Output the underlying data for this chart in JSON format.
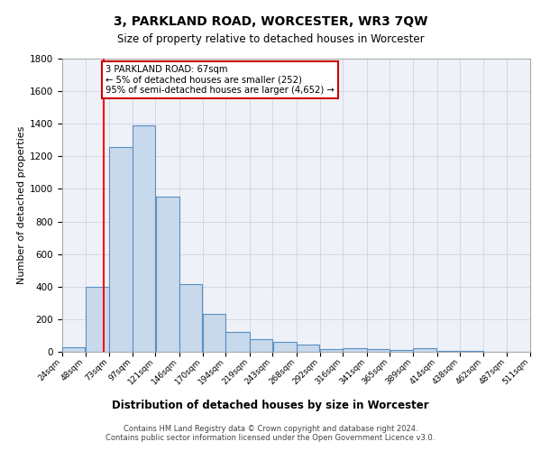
{
  "title": "3, PARKLAND ROAD, WORCESTER, WR3 7QW",
  "subtitle": "Size of property relative to detached houses in Worcester",
  "xlabel": "Distribution of detached houses by size in Worcester",
  "ylabel": "Number of detached properties",
  "bar_color": "#c9d9ec",
  "bar_edge_color": "#5a8fc0",
  "bins": [
    24,
    48,
    73,
    97,
    121,
    146,
    170,
    194,
    219,
    243,
    268,
    292,
    316,
    341,
    365,
    389,
    414,
    438,
    462,
    487,
    511
  ],
  "values": [
    30,
    400,
    1260,
    1390,
    950,
    415,
    235,
    120,
    75,
    60,
    45,
    15,
    20,
    15,
    10,
    20,
    5,
    3,
    2,
    1
  ],
  "tick_labels": [
    "24sqm",
    "48sqm",
    "73sqm",
    "97sqm",
    "121sqm",
    "146sqm",
    "170sqm",
    "194sqm",
    "219sqm",
    "243sqm",
    "268sqm",
    "292sqm",
    "316sqm",
    "341sqm",
    "365sqm",
    "389sqm",
    "414sqm",
    "438sqm",
    "462sqm",
    "487sqm",
    "511sqm"
  ],
  "red_line_x": 67,
  "annotation_text": "3 PARKLAND ROAD: 67sqm\n← 5% of detached houses are smaller (252)\n95% of semi-detached houses are larger (4,652) →",
  "annotation_box_color": "#ffffff",
  "annotation_box_edge": "#cc0000",
  "grid_color": "#d0d8e8",
  "background_color": "#eef2f8",
  "footer_text": "Contains HM Land Registry data © Crown copyright and database right 2024.\nContains public sector information licensed under the Open Government Licence v3.0.",
  "ylim": [
    0,
    1800
  ],
  "yticks": [
    0,
    200,
    400,
    600,
    800,
    1000,
    1200,
    1400,
    1600,
    1800
  ]
}
